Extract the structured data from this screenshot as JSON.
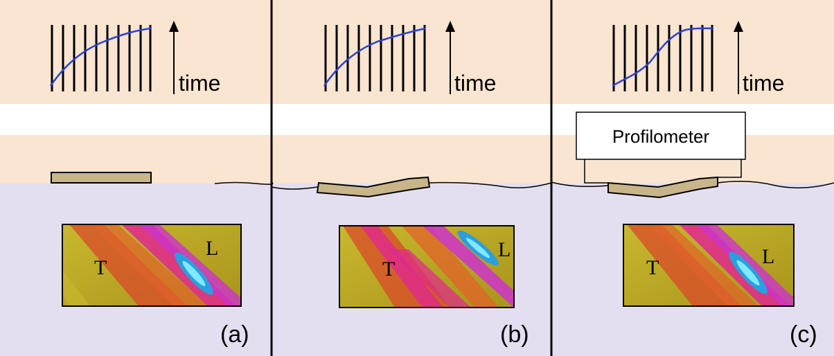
{
  "panels": [
    {
      "id": "a",
      "time_label": "time",
      "letter": "(a)",
      "map_label_T": "T",
      "map_label_L": "L"
    },
    {
      "id": "b",
      "time_label": "time",
      "letter": "(b)",
      "map_label_T": "T",
      "map_label_L": "L"
    },
    {
      "id": "c",
      "time_label": "time",
      "letter": "(c)",
      "map_label_T": "T",
      "map_label_L": "L"
    }
  ],
  "profilometer_label": "Profilometer",
  "colors": {
    "air_band": "#f9e5d0",
    "water": "#e4dff0",
    "plate": "#c8b58a",
    "curve": "#2f3fd6",
    "map_base": "#b7a21e"
  }
}
